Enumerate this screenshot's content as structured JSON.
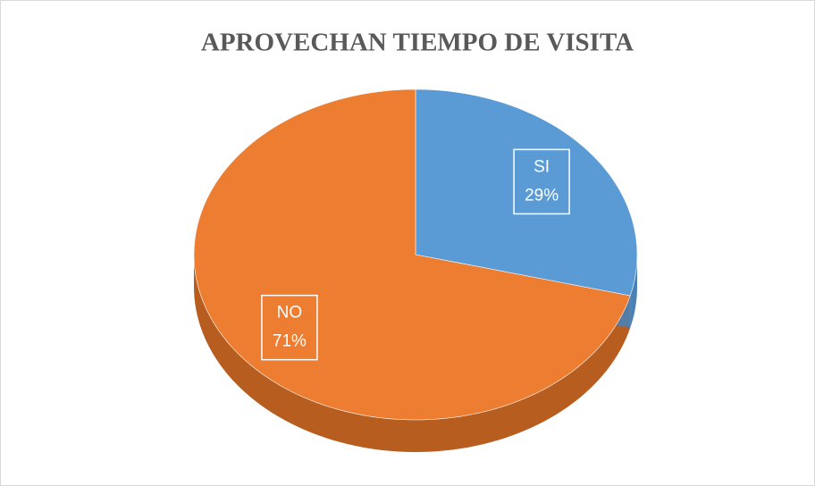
{
  "chart_data": {
    "type": "pie",
    "title": "APROVECHAN TIEMPO DE VISITA",
    "categories": [
      "SI",
      "NO"
    ],
    "values": [
      29,
      71
    ],
    "value_labels": [
      "29%",
      "71%"
    ],
    "colors": [
      "#5b9bd5",
      "#ed7d31"
    ],
    "side_colors": [
      "#4a80b3",
      "#b65d1f"
    ]
  }
}
